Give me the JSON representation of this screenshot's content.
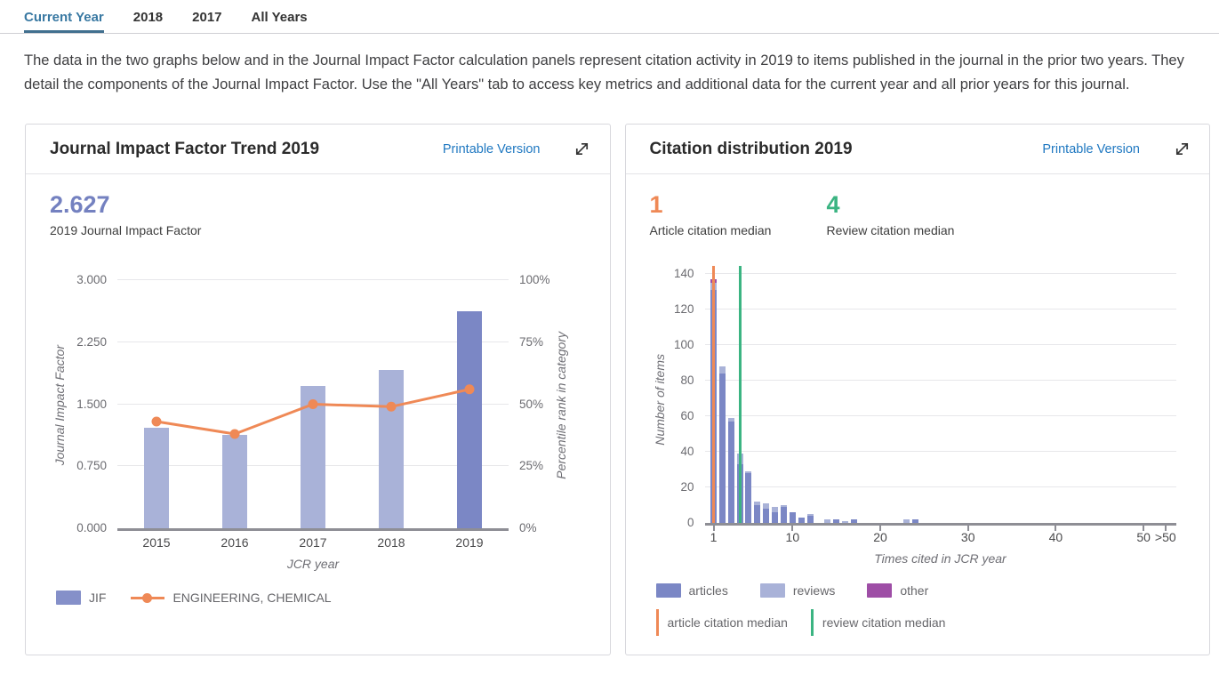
{
  "tabs": {
    "items": [
      {
        "label": "Current Year",
        "active": true
      },
      {
        "label": "2018",
        "active": false
      },
      {
        "label": "2017",
        "active": false
      },
      {
        "label": "All Years",
        "active": false
      }
    ]
  },
  "intro": {
    "text": "The data in the two graphs below and in the Journal Impact Factor calculation panels represent citation activity in 2019 to items published in the journal in the prior two years. They detail the components of the Journal Impact Factor. Use the \"All Years\" tab to access key metrics and additional data for the current year and all prior years for this journal."
  },
  "jif_panel": {
    "title": "Journal Impact Factor Trend 2019",
    "printable_label": "Printable Version",
    "expand_icon": "expand-diagonal-arrows",
    "metric_value": "2.627",
    "metric_label": "2019 Journal Impact Factor"
  },
  "citation_panel": {
    "title": "Citation distribution 2019",
    "printable_label": "Printable Version",
    "expand_icon": "expand-diagonal-arrows",
    "medians": [
      {
        "value": "1",
        "label": "Article citation median"
      },
      {
        "value": "4",
        "label": "Review citation median"
      }
    ]
  },
  "chart_data": [
    {
      "type": "bar",
      "title": "Journal Impact Factor Trend 2019",
      "categories": [
        "2015",
        "2016",
        "2017",
        "2018",
        "2019"
      ],
      "series": [
        {
          "name": "JIF",
          "type": "bar",
          "axis": "left",
          "values": [
            1.22,
            1.13,
            1.72,
            1.91,
            2.627
          ]
        },
        {
          "name": "ENGINEERING, CHEMICAL",
          "type": "line",
          "axis": "right",
          "values": [
            43,
            38,
            50,
            49,
            56
          ]
        }
      ],
      "highlight_category": "2019",
      "xlabel": "JCR year",
      "ylabel_left": "Journal Impact Factor",
      "ylabel_right": "Percentile rank in category",
      "ylim_left": [
        0,
        3
      ],
      "ylim_right": [
        0,
        100
      ],
      "yticks_left": [
        "0.000",
        "0.750",
        "1.500",
        "2.250",
        "3.000"
      ],
      "ytick_values_left": [
        0,
        0.75,
        1.5,
        2.25,
        3
      ],
      "yticks_right": [
        "0%",
        "25%",
        "50%",
        "75%",
        "100%"
      ],
      "ytick_values_right": [
        0,
        25,
        50,
        75,
        100
      ],
      "grid": true,
      "legend_position": "bottom"
    },
    {
      "type": "bar",
      "subtype": "stacked-histogram",
      "title": "Citation distribution 2019",
      "xlabel": "Times cited in JCR year",
      "ylabel": "Number of items",
      "ylim": [
        0,
        145
      ],
      "ytick_values": [
        0,
        20,
        40,
        60,
        80,
        100,
        120,
        140
      ],
      "xticks": [
        {
          "label": "1",
          "value": 1
        },
        {
          "label": "10",
          "value": 10
        },
        {
          "label": "20",
          "value": 20
        },
        {
          "label": "30",
          "value": 30
        },
        {
          "label": "40",
          "value": 40
        },
        {
          "label": "50",
          "value": 50
        },
        {
          "label": ">50",
          "value": 52.5
        }
      ],
      "legend": [
        "articles",
        "reviews",
        "other"
      ],
      "bars": [
        {
          "x": 1,
          "articles": 131,
          "reviews": 4,
          "other": 2
        },
        {
          "x": 2,
          "articles": 84,
          "reviews": 4,
          "other": 0
        },
        {
          "x": 3,
          "articles": 57,
          "reviews": 2,
          "other": 0
        },
        {
          "x": 4,
          "articles": 33,
          "reviews": 6,
          "other": 0
        },
        {
          "x": 5,
          "articles": 28,
          "reviews": 1,
          "other": 0
        },
        {
          "x": 6,
          "articles": 10,
          "reviews": 2,
          "other": 0
        },
        {
          "x": 7,
          "articles": 8,
          "reviews": 3,
          "other": 0
        },
        {
          "x": 8,
          "articles": 6,
          "reviews": 3,
          "other": 0
        },
        {
          "x": 9,
          "articles": 9,
          "reviews": 1,
          "other": 0
        },
        {
          "x": 10,
          "articles": 6,
          "reviews": 0,
          "other": 0
        },
        {
          "x": 11,
          "articles": 3,
          "reviews": 0,
          "other": 0
        },
        {
          "x": 12,
          "articles": 4,
          "reviews": 1,
          "other": 0
        },
        {
          "x": 14,
          "articles": 0,
          "reviews": 2,
          "other": 0
        },
        {
          "x": 15,
          "articles": 2,
          "reviews": 0,
          "other": 0
        },
        {
          "x": 16,
          "articles": 0,
          "reviews": 1,
          "other": 0
        },
        {
          "x": 17,
          "articles": 2,
          "reviews": 0,
          "other": 0
        },
        {
          "x": 23,
          "articles": 0,
          "reviews": 2,
          "other": 0
        },
        {
          "x": 24,
          "articles": 2,
          "reviews": 0,
          "other": 0
        }
      ],
      "median_lines": [
        {
          "name": "article citation median",
          "value": 1
        },
        {
          "name": "review citation median",
          "value": 4
        }
      ]
    }
  ],
  "colors": {
    "bar_light": "#a9b2d8",
    "bar_dark": "#7b87c5",
    "orange": "#ef8956",
    "green": "#3bb482",
    "other_magenta": "#9e4ea6",
    "link_blue": "#1f78c1",
    "tab_active": "#3878a2",
    "metric_purple": "#7481c0",
    "jif_legend_swatch": "#8590c9"
  }
}
